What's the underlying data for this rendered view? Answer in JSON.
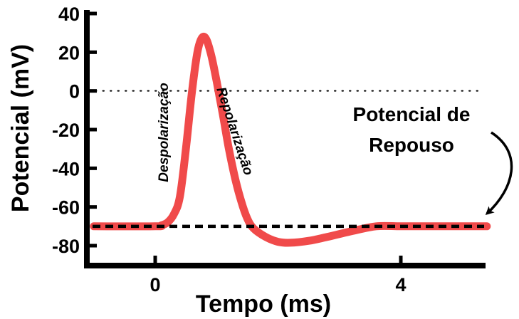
{
  "chart_data": {
    "type": "line",
    "xlabel": "Tempo (ms)",
    "ylabel": "Potencial (mV)",
    "xlim": [
      -1,
      5.4
    ],
    "ylim": [
      -90,
      42
    ],
    "x_ticks": [
      0,
      4
    ],
    "x_tick_labels": [
      "0",
      "4"
    ],
    "y_ticks": [
      40,
      20,
      0,
      -20,
      -40,
      -60,
      -80
    ],
    "y_tick_labels": [
      "40",
      "20",
      "0",
      "-20",
      "-40",
      "-60",
      "-80"
    ],
    "series": [
      {
        "color": "#f04a4a",
        "x": [
          -1.0,
          0.0,
          0.1,
          0.2,
          0.3,
          0.4,
          0.5,
          0.6,
          0.7,
          0.8,
          0.9,
          1.0,
          1.1,
          1.2,
          1.3,
          1.4,
          1.5,
          1.6,
          1.8,
          2.0,
          2.2,
          2.5,
          2.8,
          3.2,
          3.6,
          4.0,
          4.5,
          5.0,
          5.4
        ],
        "y": [
          -70,
          -70,
          -69.5,
          -68,
          -64,
          -55,
          -30,
          0,
          22,
          28,
          20,
          5,
          -12,
          -30,
          -45,
          -57,
          -66,
          -71,
          -75.5,
          -78,
          -78.5,
          -77.5,
          -75.5,
          -72.5,
          -70,
          -70,
          -70,
          -70,
          -70
        ]
      }
    ],
    "resting_line": {
      "value": -70,
      "style": "dashed",
      "color": "#000000"
    },
    "zero_line": {
      "value": 0,
      "style": "dotted",
      "color": "#000000"
    },
    "phase_labels": [
      "Despolarização",
      "Repolarização"
    ],
    "annotation": {
      "lines": [
        "Potencial de",
        "Repouso"
      ],
      "arrow": true
    }
  }
}
